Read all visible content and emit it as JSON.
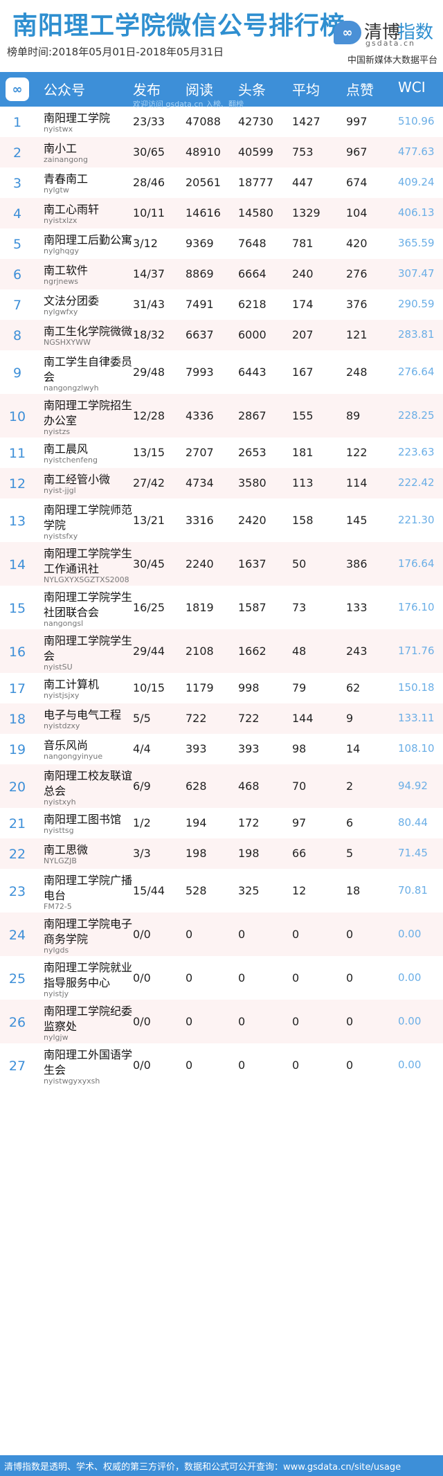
{
  "header": {
    "title": "南阳理工学院微信公号排行榜",
    "date_range": "榜单时间:2018年05月01日-2018年05月31日",
    "logo_text_a": "清博",
    "logo_text_b": "指数",
    "logo_sub": "gsdata.cn",
    "platform": "中国新媒体大数据平台"
  },
  "table": {
    "headers": {
      "account": "公众号",
      "publish": "发布",
      "read": "阅读",
      "headline": "头条",
      "average": "平均",
      "like": "点赞",
      "wci": "WCI"
    },
    "note": "欢迎访问 gsdata.cn 入榜、翻榜",
    "rows": [
      {
        "rank": "1",
        "name": "南阳理工学院",
        "account": "nyistwx",
        "publish": "23/33",
        "read": "47088",
        "headline": "42730",
        "average": "1427",
        "like": "997",
        "wci": "510.96"
      },
      {
        "rank": "2",
        "name": "南小工",
        "account": "zainangong",
        "publish": "30/65",
        "read": "48910",
        "headline": "40599",
        "average": "753",
        "like": "967",
        "wci": "477.63"
      },
      {
        "rank": "3",
        "name": "青春南工",
        "account": "nylgtw",
        "publish": "28/46",
        "read": "20561",
        "headline": "18777",
        "average": "447",
        "like": "674",
        "wci": "409.24"
      },
      {
        "rank": "4",
        "name": "南工心雨轩",
        "account": "nyistxlzx",
        "publish": "10/11",
        "read": "14616",
        "headline": "14580",
        "average": "1329",
        "like": "104",
        "wci": "406.13"
      },
      {
        "rank": "5",
        "name": "南阳理工后勤公寓",
        "account": "nylghqgy",
        "publish": "3/12",
        "read": "9369",
        "headline": "7648",
        "average": "781",
        "like": "420",
        "wci": "365.59"
      },
      {
        "rank": "6",
        "name": "南工软件",
        "account": "ngrjnews",
        "publish": "14/37",
        "read": "8869",
        "headline": "6664",
        "average": "240",
        "like": "276",
        "wci": "307.47"
      },
      {
        "rank": "7",
        "name": "文法分团委",
        "account": "nylgwfxy",
        "publish": "31/43",
        "read": "7491",
        "headline": "6218",
        "average": "174",
        "like": "376",
        "wci": "290.59"
      },
      {
        "rank": "8",
        "name": "南工生化学院微微",
        "account": "NGSHXYWW",
        "publish": "18/32",
        "read": "6637",
        "headline": "6000",
        "average": "207",
        "like": "121",
        "wci": "283.81"
      },
      {
        "rank": "9",
        "name": "南工学生自律委员会",
        "account": "nangongzlwyh",
        "publish": "29/48",
        "read": "7993",
        "headline": "6443",
        "average": "167",
        "like": "248",
        "wci": "276.64"
      },
      {
        "rank": "10",
        "name": "南阳理工学院招生办公室",
        "account": "nyistzs",
        "publish": "12/28",
        "read": "4336",
        "headline": "2867",
        "average": "155",
        "like": "89",
        "wci": "228.25"
      },
      {
        "rank": "11",
        "name": "南工晨风",
        "account": "nyistchenfeng",
        "publish": "13/15",
        "read": "2707",
        "headline": "2653",
        "average": "181",
        "like": "122",
        "wci": "223.63"
      },
      {
        "rank": "12",
        "name": "南工经管小微",
        "account": "nyist-jjgl",
        "publish": "27/42",
        "read": "4734",
        "headline": "3580",
        "average": "113",
        "like": "114",
        "wci": "222.42"
      },
      {
        "rank": "13",
        "name": "南阳理工学院师范学院",
        "account": "nyistsfxy",
        "publish": "13/21",
        "read": "3316",
        "headline": "2420",
        "average": "158",
        "like": "145",
        "wci": "221.30"
      },
      {
        "rank": "14",
        "name": "南阳理工学院学生工作通讯社",
        "account": "NYLGXYXSGZTXS2008",
        "publish": "30/45",
        "read": "2240",
        "headline": "1637",
        "average": "50",
        "like": "386",
        "wci": "176.64"
      },
      {
        "rank": "15",
        "name": "南阳理工学院学生社团联合会",
        "account": "nangongsl",
        "publish": "16/25",
        "read": "1819",
        "headline": "1587",
        "average": "73",
        "like": "133",
        "wci": "176.10"
      },
      {
        "rank": "16",
        "name": "南阳理工学院学生会",
        "account": "nyistSU",
        "publish": "29/44",
        "read": "2108",
        "headline": "1662",
        "average": "48",
        "like": "243",
        "wci": "171.76"
      },
      {
        "rank": "17",
        "name": "南工计算机",
        "account": "nyistjsjxy",
        "publish": "10/15",
        "read": "1179",
        "headline": "998",
        "average": "79",
        "like": "62",
        "wci": "150.18"
      },
      {
        "rank": "18",
        "name": "电子与电气工程",
        "account": "nyistdzxy",
        "publish": "5/5",
        "read": "722",
        "headline": "722",
        "average": "144",
        "like": "9",
        "wci": "133.11"
      },
      {
        "rank": "19",
        "name": "音乐风尚",
        "account": "nangongyinyue",
        "publish": "4/4",
        "read": "393",
        "headline": "393",
        "average": "98",
        "like": "14",
        "wci": "108.10"
      },
      {
        "rank": "20",
        "name": "南阳理工校友联谊总会",
        "account": "nyistxyh",
        "publish": "6/9",
        "read": "628",
        "headline": "468",
        "average": "70",
        "like": "2",
        "wci": "94.92"
      },
      {
        "rank": "21",
        "name": "南阳理工图书馆",
        "account": "nyisttsg",
        "publish": "1/2",
        "read": "194",
        "headline": "172",
        "average": "97",
        "like": "6",
        "wci": "80.44"
      },
      {
        "rank": "22",
        "name": "南工思微",
        "account": "NYLGZJB",
        "publish": "3/3",
        "read": "198",
        "headline": "198",
        "average": "66",
        "like": "5",
        "wci": "71.45"
      },
      {
        "rank": "23",
        "name": "南阳理工学院广播电台",
        "account": "FM72-5",
        "publish": "15/44",
        "read": "528",
        "headline": "325",
        "average": "12",
        "like": "18",
        "wci": "70.81"
      },
      {
        "rank": "24",
        "name": "南阳理工学院电子商务学院",
        "account": "nylgds",
        "publish": "0/0",
        "read": "0",
        "headline": "0",
        "average": "0",
        "like": "0",
        "wci": "0.00"
      },
      {
        "rank": "25",
        "name": "南阳理工学院就业指导服务中心",
        "account": "nyistjy",
        "publish": "0/0",
        "read": "0",
        "headline": "0",
        "average": "0",
        "like": "0",
        "wci": "0.00"
      },
      {
        "rank": "26",
        "name": "南阳理工学院纪委监察处",
        "account": "nylgjw",
        "publish": "0/0",
        "read": "0",
        "headline": "0",
        "average": "0",
        "like": "0",
        "wci": "0.00"
      },
      {
        "rank": "27",
        "name": "南阳理工外国语学生会",
        "account": "nyistwgyxyxsh",
        "publish": "0/0",
        "read": "0",
        "headline": "0",
        "average": "0",
        "like": "0",
        "wci": "0.00"
      }
    ]
  },
  "footer": {
    "text": "清博指数是透明、学术、权威的第三方评价，数据和公式可公开查询：www.gsdata.cn/site/usage"
  },
  "colors": {
    "accent": "#3d8fd8",
    "title": "#2f8fd0",
    "even_row": "#fdf3f3",
    "wci": "#6aaee6"
  }
}
